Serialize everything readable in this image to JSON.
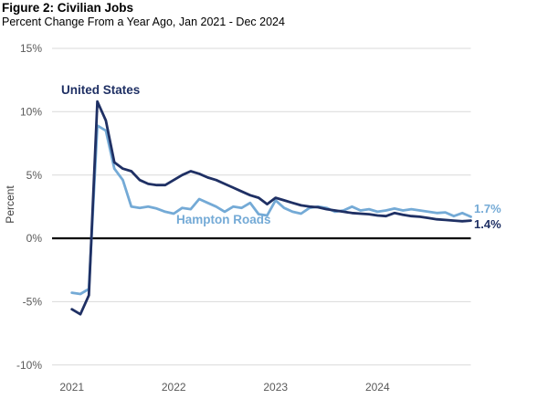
{
  "header": {
    "title": "Figure 2: Civilian Jobs",
    "subtitle": "Percent Change From a Year Ago, Jan 2021 - Dec 2024"
  },
  "chart_data": {
    "type": "line",
    "title": "Figure 2: Civilian Jobs",
    "subtitle": "Percent Change From a Year Ago, Jan 2021 - Dec 2024",
    "ylabel": "Percent",
    "xlabel": "",
    "ylim": [
      -10,
      15
    ],
    "grid": "horizontal",
    "baseline": 0,
    "colors": {
      "grid": "#d9d9d9",
      "zero_line": "#000000",
      "tick_text": "#595959"
    },
    "yticks": [
      15,
      10,
      5,
      0,
      -5,
      -10
    ],
    "ytick_labels": [
      "15%",
      "10%",
      "5%",
      "0%",
      "-5%",
      "-10%"
    ],
    "xtick_labels": [
      "2021",
      "2022",
      "2023",
      "2024"
    ],
    "x": [
      "2021-01",
      "2021-02",
      "2021-03",
      "2021-04",
      "2021-05",
      "2021-06",
      "2021-07",
      "2021-08",
      "2021-09",
      "2021-10",
      "2021-11",
      "2021-12",
      "2022-01",
      "2022-02",
      "2022-03",
      "2022-04",
      "2022-05",
      "2022-06",
      "2022-07",
      "2022-08",
      "2022-09",
      "2022-10",
      "2022-11",
      "2022-12",
      "2023-01",
      "2023-02",
      "2023-03",
      "2023-04",
      "2023-05",
      "2023-06",
      "2023-07",
      "2023-08",
      "2023-09",
      "2023-10",
      "2023-11",
      "2023-12",
      "2024-01",
      "2024-02",
      "2024-03",
      "2024-04",
      "2024-05",
      "2024-06",
      "2024-07",
      "2024-08",
      "2024-09",
      "2024-10",
      "2024-11",
      "2024-12"
    ],
    "series": [
      {
        "name": "United States",
        "color": "#1f3064",
        "end_label": "1.4%",
        "values": [
          -5.6,
          -6.0,
          -4.5,
          10.8,
          9.3,
          6.0,
          5.5,
          5.3,
          4.6,
          4.3,
          4.2,
          4.2,
          4.6,
          5.0,
          5.3,
          5.1,
          4.8,
          4.6,
          4.3,
          4.0,
          3.7,
          3.4,
          3.2,
          2.7,
          3.2,
          3.0,
          2.8,
          2.6,
          2.5,
          2.45,
          2.3,
          2.2,
          2.1,
          2.0,
          1.95,
          1.9,
          1.8,
          1.75,
          2.0,
          1.85,
          1.75,
          1.7,
          1.6,
          1.5,
          1.45,
          1.4,
          1.35,
          1.4
        ]
      },
      {
        "name": "Hampton Roads",
        "color": "#74aad6",
        "end_label": "1.7%",
        "values": [
          -4.3,
          -4.4,
          -4.0,
          8.9,
          8.5,
          5.5,
          4.6,
          2.5,
          2.4,
          2.5,
          2.35,
          2.1,
          1.95,
          2.4,
          2.3,
          3.1,
          2.8,
          2.5,
          2.1,
          2.5,
          2.4,
          2.8,
          1.9,
          1.8,
          3.0,
          2.4,
          2.1,
          1.95,
          2.4,
          2.5,
          2.4,
          2.1,
          2.2,
          2.5,
          2.2,
          2.3,
          2.1,
          2.2,
          2.35,
          2.2,
          2.3,
          2.2,
          2.1,
          2.0,
          2.05,
          1.75,
          2.0,
          1.7
        ]
      }
    ]
  }
}
